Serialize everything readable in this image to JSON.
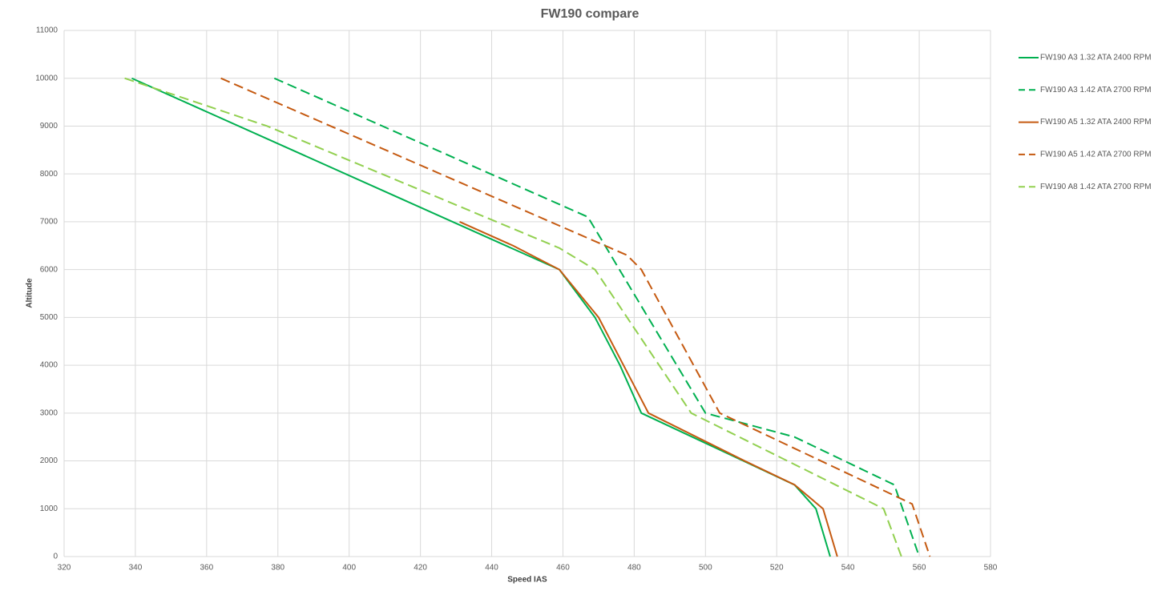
{
  "chart_data": {
    "type": "line",
    "title": "FW190 compare",
    "x_label": "Speed IAS",
    "y_label": "Altitude",
    "xlim": [
      320,
      580
    ],
    "xticks": [
      320,
      340,
      360,
      380,
      400,
      420,
      440,
      460,
      480,
      500,
      520,
      540,
      560,
      580
    ],
    "ylim": [
      0,
      11000
    ],
    "yticks": [
      0,
      1000,
      2000,
      3000,
      4000,
      5000,
      6000,
      7000,
      8000,
      9000,
      10000,
      11000
    ],
    "grid": true,
    "legend": "right",
    "series": [
      {
        "name": "FW190 A3 1.32 ATA 2400 RPM",
        "color": "#00b050",
        "dashed": false,
        "x": [
          339,
          459,
          469,
          476,
          482,
          525,
          531,
          535
        ],
        "values": [
          10000,
          6000,
          5000,
          4000,
          3000,
          1500,
          1000,
          0
        ]
      },
      {
        "name": "FW190 A3 1.42 ATA 2700 RPM",
        "color": "#00b050",
        "dashed": true,
        "x": [
          379,
          467,
          500,
          525,
          553,
          560
        ],
        "values": [
          10000,
          7100,
          3000,
          2500,
          1500,
          0
        ]
      },
      {
        "name": "FW190 A5 1.32 ATA 2400 RPM",
        "color": "#c55a11",
        "dashed": false,
        "x": [
          431,
          446,
          459,
          470,
          477,
          484,
          511,
          525,
          533,
          537
        ],
        "values": [
          7000,
          6500,
          6000,
          5000,
          4000,
          3000,
          2000,
          1500,
          1000,
          0
        ]
      },
      {
        "name": "FW190 A5 1.42 ATA 2700 RPM",
        "color": "#c55a11",
        "dashed": true,
        "x": [
          364,
          478,
          482,
          504,
          558,
          563
        ],
        "values": [
          10000,
          6300,
          6000,
          3000,
          1100,
          0
        ]
      },
      {
        "name": "FW190 A8 1.42 ATA 2700 RPM",
        "color": "#92d050",
        "dashed": true,
        "x": [
          337,
          377,
          459,
          469,
          496,
          550,
          555
        ],
        "values": [
          10000,
          9000,
          6450,
          6000,
          3000,
          1000,
          0
        ]
      }
    ]
  }
}
